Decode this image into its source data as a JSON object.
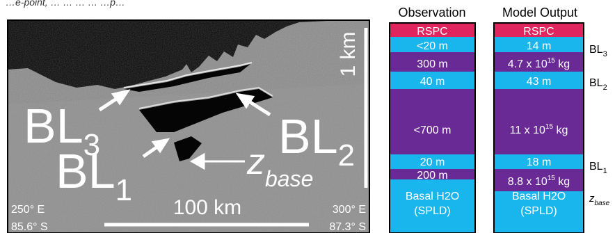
{
  "top_caption": "…e‑point, … … … … …p…",
  "radar": {
    "labels": {
      "bl3": {
        "main": "BL",
        "sub": "3"
      },
      "bl2": {
        "main": "BL",
        "sub": "2"
      },
      "bl1": {
        "main": "BL",
        "sub": "1"
      },
      "zbase": {
        "main": "z",
        "sub": "base"
      }
    },
    "vertical_scale": "1 km",
    "horizontal_scale": "100 km",
    "coords": {
      "left_lon": "250° E",
      "left_lat": "85.6° S",
      "right_lon": "300° E",
      "right_lat": "87.3° S"
    }
  },
  "columns": {
    "observation": {
      "title": "Observation",
      "layers": [
        {
          "text": "RSPC",
          "kind": "rspc"
        },
        {
          "text": "<20 m",
          "kind": "blue"
        },
        {
          "text": "300 m",
          "kind": "purple"
        },
        {
          "text": "40 m",
          "kind": "blue"
        },
        {
          "text": "<700 m",
          "kind": "purple"
        },
        {
          "text": "20 m",
          "kind": "blue"
        },
        {
          "text": "200 m",
          "kind": "purple"
        },
        {
          "text": "Basal H2O",
          "text2": "(SPLD)",
          "kind": "blue"
        }
      ]
    },
    "model": {
      "title": "Model Output",
      "layers": [
        {
          "text": "RSPC",
          "kind": "rspc"
        },
        {
          "text": "14 m",
          "kind": "blue"
        },
        {
          "text": "4.7 x 10",
          "sup": "15",
          "unit": " kg",
          "kind": "purple"
        },
        {
          "text": "43 m",
          "kind": "blue"
        },
        {
          "text": "11 x 10",
          "sup": "15",
          "unit": " kg",
          "kind": "purple"
        },
        {
          "text": "18 m",
          "kind": "blue"
        },
        {
          "text": "8.8 x 10",
          "sup": "15",
          "unit": " kg",
          "kind": "purple"
        },
        {
          "text": "Basal H2O",
          "text2": "(SPLD)",
          "kind": "blue"
        }
      ]
    }
  },
  "side_labels": [
    {
      "main": "BL",
      "sub": "3"
    },
    {
      "main": "BL",
      "sub": "2"
    },
    {
      "main": "BL",
      "sub": "1"
    },
    {
      "main": "z",
      "sub": "base"
    }
  ],
  "colors": {
    "rspc": "#e0245e",
    "blue": "#19b6ee",
    "purple": "#6a2a96",
    "text_on_layer": "#ffffff"
  }
}
